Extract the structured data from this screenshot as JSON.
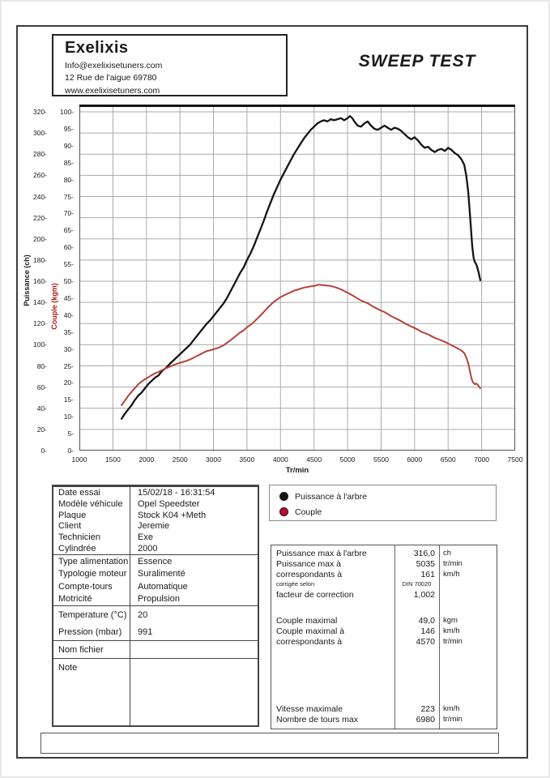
{
  "header": {
    "company": "Exelixis",
    "email": "Info@exelixisetuners.com",
    "address": "12 Rue de l'aigue 69780",
    "website": "www.exelixisetuners.com",
    "title": "SWEEP TEST"
  },
  "chart_data": {
    "type": "line",
    "xlabel": "Tr/min",
    "xlim": [
      1000,
      7500
    ],
    "x_ticks": [
      1000,
      1500,
      2000,
      2500,
      3000,
      3500,
      4000,
      4500,
      5000,
      5500,
      6000,
      6500,
      7000,
      7500
    ],
    "tick_suffix": "-",
    "grid": true,
    "power_axis": {
      "label": "Puissance (ch)",
      "lim": [
        0,
        320
      ],
      "ticks": [
        0,
        20,
        40,
        60,
        80,
        100,
        120,
        140,
        160,
        180,
        200,
        220,
        240,
        260,
        280,
        300,
        320
      ],
      "color": "#1a1a1a"
    },
    "torque_axis": {
      "label": "Couple (kgm)",
      "lim": [
        0,
        100
      ],
      "ticks": [
        0,
        5,
        10,
        15,
        20,
        25,
        30,
        35,
        40,
        45,
        50,
        55,
        60,
        65,
        70,
        75,
        80,
        85,
        90,
        95,
        100
      ],
      "color": "#b01818"
    },
    "series": [
      {
        "name": "Puissance à l'arbre",
        "axis": "power",
        "color": "#141414",
        "x": [
          1630,
          1680,
          1730,
          1780,
          1830,
          1880,
          1930,
          1980,
          2030,
          2080,
          2130,
          2180,
          2230,
          2290,
          2350,
          2400,
          2450,
          2500,
          2550,
          2600,
          2650,
          2700,
          2750,
          2800,
          2850,
          2900,
          2950,
          3000,
          3050,
          3100,
          3150,
          3200,
          3250,
          3300,
          3350,
          3400,
          3450,
          3500,
          3550,
          3600,
          3650,
          3700,
          3750,
          3800,
          3850,
          3900,
          3950,
          4000,
          4050,
          4100,
          4150,
          4200,
          4250,
          4300,
          4350,
          4400,
          4450,
          4500,
          4550,
          4600,
          4650,
          4700,
          4750,
          4800,
          4850,
          4900,
          4950,
          5000,
          5035,
          5070,
          5100,
          5150,
          5200,
          5250,
          5300,
          5350,
          5400,
          5450,
          5500,
          5550,
          5600,
          5650,
          5700,
          5750,
          5800,
          5850,
          5900,
          5950,
          6000,
          6050,
          6100,
          6150,
          6200,
          6250,
          6300,
          6350,
          6400,
          6450,
          6500,
          6550,
          6600,
          6650,
          6700,
          6740,
          6770,
          6800,
          6820,
          6840,
          6860,
          6880,
          6900,
          6920,
          6940,
          6960,
          6980
        ],
        "y": [
          30,
          35,
          39,
          43,
          48,
          52,
          55,
          59,
          63,
          66,
          69,
          71,
          75,
          78,
          82,
          85,
          88,
          91,
          94,
          97,
          100,
          104,
          108,
          112,
          116,
          120,
          123,
          127,
          131,
          135,
          139,
          144,
          150,
          156,
          162,
          168,
          173,
          180,
          186,
          193,
          201,
          209,
          217,
          226,
          234,
          242,
          249,
          256,
          262,
          268,
          274,
          280,
          285,
          290,
          295,
          299,
          303,
          306,
          309,
          311,
          312,
          311,
          313,
          312,
          313,
          314,
          312,
          314,
          316,
          314,
          311,
          307,
          306,
          309,
          311,
          307,
          304,
          303,
          305,
          307,
          305,
          303,
          305,
          304,
          302,
          299,
          296,
          294,
          296,
          293,
          289,
          286,
          287,
          284,
          282,
          284,
          285,
          283,
          286,
          284,
          281,
          279,
          275,
          270,
          260,
          244,
          228,
          210,
          193,
          182,
          178,
          176,
          172,
          167,
          161
        ]
      },
      {
        "name": "Couple",
        "axis": "torque",
        "color": "#b2423a",
        "x": [
          1630,
          1680,
          1730,
          1780,
          1830,
          1880,
          1930,
          1980,
          2030,
          2080,
          2130,
          2180,
          2230,
          2290,
          2350,
          2400,
          2450,
          2500,
          2550,
          2600,
          2650,
          2700,
          2750,
          2800,
          2850,
          2900,
          2950,
          3000,
          3050,
          3100,
          3150,
          3200,
          3250,
          3300,
          3350,
          3400,
          3450,
          3500,
          3550,
          3600,
          3650,
          3700,
          3750,
          3800,
          3850,
          3900,
          3950,
          4000,
          4050,
          4100,
          4150,
          4200,
          4250,
          4300,
          4350,
          4400,
          4450,
          4500,
          4570,
          4650,
          4700,
          4750,
          4800,
          4850,
          4900,
          4950,
          5000,
          5050,
          5100,
          5150,
          5200,
          5250,
          5300,
          5350,
          5400,
          5450,
          5500,
          5550,
          5600,
          5650,
          5700,
          5750,
          5800,
          5850,
          5900,
          5950,
          6000,
          6050,
          6100,
          6150,
          6200,
          6250,
          6300,
          6350,
          6400,
          6450,
          6500,
          6550,
          6600,
          6650,
          6700,
          6740,
          6770,
          6800,
          6820,
          6840,
          6860,
          6880,
          6900,
          6920,
          6940,
          6960,
          6980
        ],
        "y": [
          13.4,
          14.8,
          16.2,
          17.4,
          18.5,
          19.6,
          20.4,
          21.1,
          21.7,
          22.3,
          22.8,
          23.2,
          23.7,
          24.3,
          24.8,
          25.2,
          25.6,
          25.9,
          26.2,
          26.5,
          26.9,
          27.4,
          27.9,
          28.4,
          28.9,
          29.4,
          29.6,
          29.9,
          30.2,
          30.6,
          31.1,
          31.8,
          32.5,
          33.3,
          34.1,
          34.9,
          35.5,
          36.4,
          37.1,
          37.9,
          38.9,
          39.9,
          40.9,
          42.0,
          43.0,
          43.9,
          44.6,
          45.3,
          45.8,
          46.3,
          46.7,
          47.2,
          47.5,
          47.8,
          48.1,
          48.3,
          48.5,
          48.6,
          49.0,
          48.8,
          48.7,
          48.6,
          48.3,
          48.0,
          47.6,
          47.1,
          46.6,
          46.1,
          45.5,
          44.9,
          44.3,
          43.9,
          43.5,
          42.9,
          42.3,
          41.8,
          41.3,
          40.9,
          40.3,
          39.7,
          39.2,
          38.7,
          38.2,
          37.6,
          37.1,
          36.6,
          36.2,
          35.7,
          35.1,
          34.7,
          34.3,
          33.8,
          33.3,
          32.9,
          32.5,
          32.1,
          31.6,
          31.1,
          30.6,
          30.1,
          29.5,
          28.8,
          27.5,
          25.8,
          24.0,
          22.0,
          20.6,
          19.9,
          19.6,
          19.8,
          19.4,
          18.9,
          18.4
        ]
      }
    ]
  },
  "legend": {
    "items": [
      {
        "label": "Puissance à l'arbre",
        "color": "#141414"
      },
      {
        "label": "Couple",
        "color": "#c00a2e"
      }
    ]
  },
  "info_table": {
    "groups": [
      {
        "rows": [
          {
            "label": "Date essai",
            "value": "15/02/18 - 16:31:54"
          },
          {
            "label": "Modèle véhicule",
            "value": "Opel Speedster"
          },
          {
            "label": "Plaque",
            "value": "Stock K04 +Meth"
          },
          {
            "label": "Client",
            "value": "Jeremie"
          },
          {
            "label": "Technicien",
            "value": "Exe"
          },
          {
            "label": "Cylindrée",
            "value": "2000"
          }
        ]
      },
      {
        "rows": [
          {
            "label": "Type alimentation",
            "value": "Essence"
          },
          {
            "label": "Typologie moteur",
            "value": "Suralimenté"
          },
          {
            "label": "Compte-tours",
            "value": "Automatique"
          },
          {
            "label": "Motricité",
            "value": "Propulsion"
          }
        ]
      },
      {
        "rows": [
          {
            "label": "Temperature (°C)",
            "value": "20"
          },
          {
            "label": "Pression (mbar)",
            "value": "991"
          }
        ]
      },
      {
        "rows": [
          {
            "label": "Nom fichier",
            "value": ""
          }
        ]
      },
      {
        "rows": [
          {
            "label": "Note",
            "value": ""
          }
        ]
      }
    ]
  },
  "results_table": {
    "groups": [
      {
        "rows": [
          {
            "label": "Puissance max à l'arbre",
            "value": "316,0",
            "unit": "ch",
            "small": false
          },
          {
            "label": "Puissance max à",
            "value": "5035",
            "unit": "tr/min",
            "small": false
          },
          {
            "label": "correspondants à",
            "value": "161",
            "unit": "km/h",
            "small": false
          },
          {
            "label": "corrigée selon",
            "value": "DIN 70020",
            "unit": "",
            "small": true
          },
          {
            "label": "facteur de correction",
            "value": "1,002",
            "unit": "",
            "small": false
          }
        ]
      },
      {
        "rows": [
          {
            "label": "Couple maximal",
            "value": "49,0",
            "unit": "kgm",
            "small": false
          },
          {
            "label": "Couple maximal à",
            "value": "146",
            "unit": "km/h",
            "small": false
          },
          {
            "label": "correspondants à",
            "value": "4570",
            "unit": "tr/min",
            "small": false
          }
        ]
      },
      {
        "rows": [
          {
            "label": "Vitesse maximale",
            "value": "223",
            "unit": "km/h",
            "small": false
          },
          {
            "label": "Nombre de tours max",
            "value": "6980",
            "unit": "tr/min",
            "small": false
          }
        ]
      }
    ]
  }
}
